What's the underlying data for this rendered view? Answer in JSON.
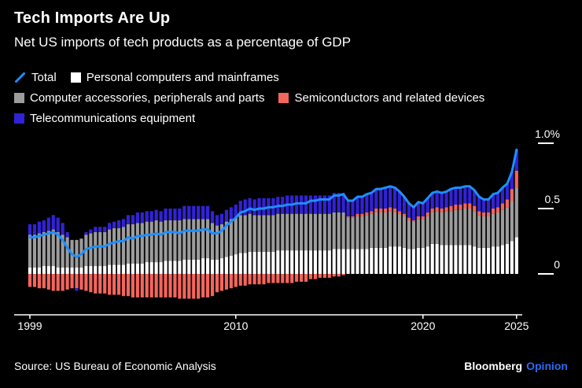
{
  "header": {
    "title": "Tech Imports Are Up",
    "subtitle": "Net US imports of tech products as a percentage of GDP"
  },
  "footer": {
    "source": "Source: US Bureau of Economic Analysis",
    "brand_bloomberg": "Bloomberg",
    "brand_opinion": "Opinion"
  },
  "colors": {
    "background": "#000000",
    "text": "#FFFFFF",
    "total_line": "#1E8FFF",
    "personal_computers": "#FFFFFF",
    "computer_accessories": "#9C9C9C",
    "semiconductors": "#F4655C",
    "telecommunications": "#3222D6",
    "opinion_brand": "#2A6BF2"
  },
  "chart_data": {
    "type": "bar",
    "subtype": "stacked-bars-with-line-overlay",
    "x_frequency": "quarterly",
    "x_start": "1999Q1",
    "x_end": "2025Q1",
    "xticks": [
      "1999",
      "2010",
      "2020",
      "2025"
    ],
    "yticks": [
      {
        "label": "1.0%",
        "value": 1.0
      },
      {
        "label": "0.5",
        "value": 0.5
      },
      {
        "label": "0",
        "value": 0
      }
    ],
    "ylim": [
      -0.31,
      1.05
    ],
    "grid": false,
    "legend_position": "top",
    "series": [
      {
        "name": "Total",
        "type": "line",
        "color": "#1E8FFF",
        "values": [
          0.28,
          0.28,
          0.29,
          0.3,
          0.31,
          0.32,
          0.3,
          0.26,
          0.2,
          0.15,
          0.13,
          0.15,
          0.19,
          0.2,
          0.21,
          0.21,
          0.21,
          0.23,
          0.24,
          0.25,
          0.25,
          0.28,
          0.27,
          0.29,
          0.29,
          0.3,
          0.3,
          0.31,
          0.3,
          0.32,
          0.32,
          0.32,
          0.31,
          0.33,
          0.33,
          0.33,
          0.33,
          0.34,
          0.34,
          0.31,
          0.31,
          0.33,
          0.37,
          0.4,
          0.43,
          0.47,
          0.48,
          0.5,
          0.49,
          0.5,
          0.5,
          0.51,
          0.51,
          0.52,
          0.52,
          0.53,
          0.53,
          0.54,
          0.54,
          0.54,
          0.56,
          0.56,
          0.57,
          0.57,
          0.57,
          0.6,
          0.6,
          0.61,
          0.56,
          0.56,
          0.59,
          0.59,
          0.61,
          0.62,
          0.65,
          0.65,
          0.66,
          0.67,
          0.66,
          0.63,
          0.59,
          0.54,
          0.51,
          0.55,
          0.54,
          0.58,
          0.62,
          0.63,
          0.62,
          0.63,
          0.65,
          0.66,
          0.66,
          0.67,
          0.67,
          0.64,
          0.59,
          0.57,
          0.57,
          0.61,
          0.62,
          0.66,
          0.69,
          0.78,
          0.95
        ]
      },
      {
        "name": "Personal computers and mainframes",
        "type": "bar",
        "color": "#FFFFFF",
        "values": [
          0.05,
          0.05,
          0.05,
          0.06,
          0.06,
          0.06,
          0.05,
          0.05,
          0.05,
          0.05,
          0.05,
          0.05,
          0.06,
          0.06,
          0.06,
          0.06,
          0.06,
          0.07,
          0.07,
          0.07,
          0.07,
          0.08,
          0.08,
          0.08,
          0.08,
          0.09,
          0.09,
          0.09,
          0.09,
          0.1,
          0.1,
          0.1,
          0.1,
          0.11,
          0.11,
          0.11,
          0.11,
          0.12,
          0.12,
          0.11,
          0.11,
          0.12,
          0.13,
          0.14,
          0.15,
          0.16,
          0.16,
          0.17,
          0.17,
          0.17,
          0.17,
          0.17,
          0.17,
          0.18,
          0.18,
          0.18,
          0.18,
          0.18,
          0.18,
          0.18,
          0.18,
          0.18,
          0.18,
          0.18,
          0.18,
          0.19,
          0.19,
          0.19,
          0.19,
          0.19,
          0.19,
          0.19,
          0.19,
          0.2,
          0.2,
          0.2,
          0.2,
          0.21,
          0.21,
          0.21,
          0.2,
          0.19,
          0.19,
          0.2,
          0.2,
          0.21,
          0.23,
          0.23,
          0.22,
          0.22,
          0.22,
          0.22,
          0.22,
          0.22,
          0.22,
          0.21,
          0.2,
          0.2,
          0.2,
          0.21,
          0.21,
          0.22,
          0.23,
          0.25,
          0.28
        ]
      },
      {
        "name": "Computer accessories, peripherals and parts",
        "type": "bar",
        "color": "#9C9C9C",
        "values": [
          0.25,
          0.25,
          0.26,
          0.26,
          0.27,
          0.28,
          0.27,
          0.25,
          0.23,
          0.21,
          0.21,
          0.22,
          0.24,
          0.25,
          0.26,
          0.26,
          0.26,
          0.27,
          0.28,
          0.28,
          0.29,
          0.3,
          0.3,
          0.31,
          0.31,
          0.31,
          0.31,
          0.32,
          0.31,
          0.31,
          0.31,
          0.31,
          0.31,
          0.31,
          0.31,
          0.31,
          0.31,
          0.3,
          0.3,
          0.28,
          0.26,
          0.26,
          0.27,
          0.28,
          0.28,
          0.29,
          0.29,
          0.29,
          0.28,
          0.28,
          0.28,
          0.28,
          0.28,
          0.28,
          0.28,
          0.28,
          0.28,
          0.28,
          0.28,
          0.28,
          0.28,
          0.28,
          0.28,
          0.28,
          0.28,
          0.28,
          0.28,
          0.28,
          0.24,
          0.24,
          0.25,
          0.25,
          0.26,
          0.26,
          0.27,
          0.27,
          0.27,
          0.27,
          0.26,
          0.25,
          0.24,
          0.22,
          0.21,
          0.22,
          0.22,
          0.23,
          0.24,
          0.25,
          0.25,
          0.26,
          0.26,
          0.27,
          0.27,
          0.28,
          0.28,
          0.27,
          0.25,
          0.24,
          0.24,
          0.25,
          0.26,
          0.27,
          0.28,
          0.31,
          0.38
        ]
      },
      {
        "name": "Semiconductors and related devices",
        "type": "bar",
        "color": "#F4655C",
        "values": [
          -0.1,
          -0.1,
          -0.11,
          -0.11,
          -0.12,
          -0.13,
          -0.13,
          -0.13,
          -0.12,
          -0.11,
          -0.11,
          -0.12,
          -0.13,
          -0.14,
          -0.15,
          -0.15,
          -0.15,
          -0.16,
          -0.16,
          -0.16,
          -0.17,
          -0.17,
          -0.18,
          -0.18,
          -0.18,
          -0.18,
          -0.18,
          -0.18,
          -0.18,
          -0.18,
          -0.18,
          -0.18,
          -0.19,
          -0.19,
          -0.19,
          -0.19,
          -0.19,
          -0.18,
          -0.18,
          -0.17,
          -0.14,
          -0.13,
          -0.12,
          -0.11,
          -0.1,
          -0.09,
          -0.09,
          -0.08,
          -0.08,
          -0.08,
          -0.08,
          -0.07,
          -0.07,
          -0.07,
          -0.07,
          -0.07,
          -0.07,
          -0.06,
          -0.06,
          -0.06,
          -0.04,
          -0.04,
          -0.03,
          -0.03,
          -0.03,
          -0.02,
          -0.02,
          -0.01,
          0.01,
          0.01,
          0.02,
          0.02,
          0.02,
          0.02,
          0.03,
          0.03,
          0.03,
          0.03,
          0.03,
          0.02,
          0.02,
          0.02,
          0.01,
          0.02,
          0.02,
          0.03,
          0.03,
          0.03,
          0.03,
          0.03,
          0.04,
          0.04,
          0.04,
          0.04,
          0.04,
          0.04,
          0.03,
          0.03,
          0.03,
          0.04,
          0.04,
          0.05,
          0.06,
          0.09,
          0.13
        ]
      },
      {
        "name": "Telecommunications equipment",
        "type": "bar",
        "color": "#3222D6",
        "values": [
          0.08,
          0.08,
          0.09,
          0.09,
          0.1,
          0.11,
          0.11,
          0.09,
          0.04,
          0.0,
          -0.02,
          0.0,
          0.02,
          0.03,
          0.04,
          0.04,
          0.04,
          0.05,
          0.05,
          0.06,
          0.06,
          0.07,
          0.07,
          0.08,
          0.08,
          0.08,
          0.08,
          0.08,
          0.08,
          0.09,
          0.09,
          0.09,
          0.09,
          0.1,
          0.1,
          0.1,
          0.1,
          0.1,
          0.1,
          0.09,
          0.08,
          0.08,
          0.09,
          0.09,
          0.1,
          0.11,
          0.12,
          0.12,
          0.12,
          0.13,
          0.13,
          0.13,
          0.13,
          0.13,
          0.13,
          0.14,
          0.14,
          0.14,
          0.14,
          0.14,
          0.14,
          0.14,
          0.14,
          0.14,
          0.14,
          0.15,
          0.15,
          0.15,
          0.12,
          0.12,
          0.13,
          0.13,
          0.14,
          0.14,
          0.15,
          0.15,
          0.16,
          0.16,
          0.16,
          0.15,
          0.13,
          0.11,
          0.1,
          0.11,
          0.1,
          0.11,
          0.12,
          0.12,
          0.12,
          0.12,
          0.13,
          0.13,
          0.13,
          0.13,
          0.13,
          0.12,
          0.11,
          0.1,
          0.1,
          0.11,
          0.11,
          0.12,
          0.12,
          0.13,
          0.16
        ]
      }
    ]
  }
}
